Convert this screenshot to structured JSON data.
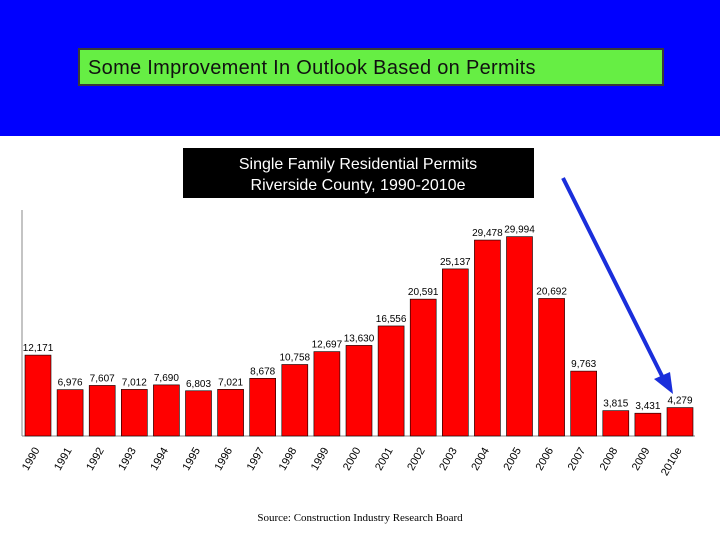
{
  "slide": {
    "headline": "Some Improvement In Outlook Based on Permits"
  },
  "colors": {
    "background": "#0000ff",
    "headline_box": "#66ee44",
    "bar": "#ff0000",
    "arrow": "#1a2edb",
    "chart_title_box": "#000000"
  },
  "chart_data": {
    "type": "bar",
    "title": "Single Family Residential Permits",
    "subtitle": "Riverside County, 1990-2010e",
    "source": "Source:  Construction Industry Research Board",
    "categories": [
      "1990",
      "1991",
      "1992",
      "1993",
      "1994",
      "1995",
      "1996",
      "1997",
      "1998",
      "1999",
      "2000",
      "2001",
      "2002",
      "2003",
      "2004",
      "2005",
      "2006",
      "2007",
      "2008",
      "2009",
      "2010e"
    ],
    "values": [
      12171,
      6976,
      7607,
      7012,
      7690,
      6803,
      7021,
      8678,
      10758,
      12697,
      13630,
      16556,
      20591,
      25137,
      29478,
      29994,
      20692,
      9763,
      3815,
      3431,
      4279
    ],
    "value_labels": [
      "12,171",
      "6,976",
      "7,607",
      "7,012",
      "7,690",
      "6,803",
      "7,021",
      "8,678",
      "10,758",
      "12,697",
      "13,630",
      "16,556",
      "20,591",
      "25,137",
      "29,478",
      "29,994",
      "20,692",
      "9,763",
      "3,815",
      "3,431",
      "4,279"
    ],
    "ylim": [
      0,
      34000
    ],
    "grid": false,
    "legend": "none",
    "annotation": "arrow pointing down toward 2010e"
  }
}
